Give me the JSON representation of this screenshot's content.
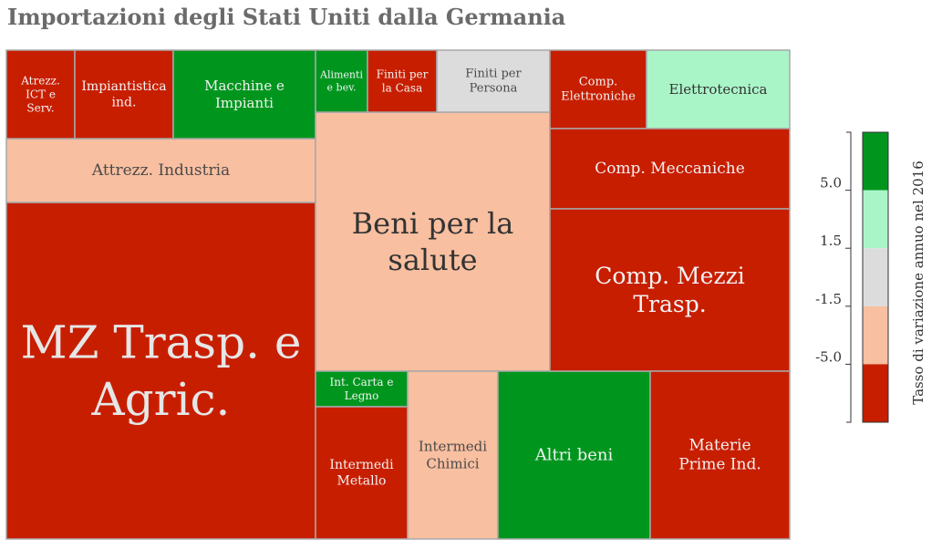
{
  "chart_data": {
    "type": "treemap",
    "title": "Importazioni degli Stati Uniti dalla Germania",
    "legend_title": "Tasso di variazione annuo nel 2016",
    "legend_ticks": [
      "5.0",
      "1.5",
      "-1.5",
      "-5.0"
    ],
    "legend_placement": "right",
    "color_classes": [
      {
        "range": "> 5.0",
        "color": "#00961e"
      },
      {
        "range": "1.5 to 5.0",
        "color": "#aaf5c8"
      },
      {
        "range": "-1.5 to 1.5",
        "color": "#dcdcdc"
      },
      {
        "range": "-5.0 to -1.5",
        "color": "#f8bfa0"
      },
      {
        "range": "< -5.0",
        "color": "#c81e00"
      }
    ],
    "tiles": [
      {
        "label": "MZ Trasp. e Agric.",
        "color": "#c81e00"
      },
      {
        "label": "Attrezz. Industria",
        "color": "#f8bfa0"
      },
      {
        "label": "Atrezz. ICT e Serv.",
        "color": "#c81e00"
      },
      {
        "label": "Impiantistica ind.",
        "color": "#c81e00"
      },
      {
        "label": "Macchine e Impianti",
        "color": "#00961e"
      },
      {
        "label": "Beni per la salute",
        "color": "#f8bfa0"
      },
      {
        "label": "Alimenti e bev.",
        "color": "#00961e"
      },
      {
        "label": "Finiti per la Casa",
        "color": "#c81e00"
      },
      {
        "label": "Finiti per Persona",
        "color": "#dcdcdc"
      },
      {
        "label": "Int. Carta e Legno",
        "color": "#00961e"
      },
      {
        "label": "Intermedi Metallo",
        "color": "#c81e00"
      },
      {
        "label": "Intermedi Chimici",
        "color": "#f8bfa0"
      },
      {
        "label": "Altri beni",
        "color": "#00961e"
      },
      {
        "label": "Comp. Elettroniche",
        "color": "#c81e00"
      },
      {
        "label": "Elettrotecnica",
        "color": "#aaf5c8"
      },
      {
        "label": "Comp. Meccaniche",
        "color": "#c81e00"
      },
      {
        "label": "Comp. Mezzi Trasp.",
        "color": "#c81e00"
      },
      {
        "label": "Materie Prime Ind.",
        "color": "#c81e00"
      }
    ]
  }
}
